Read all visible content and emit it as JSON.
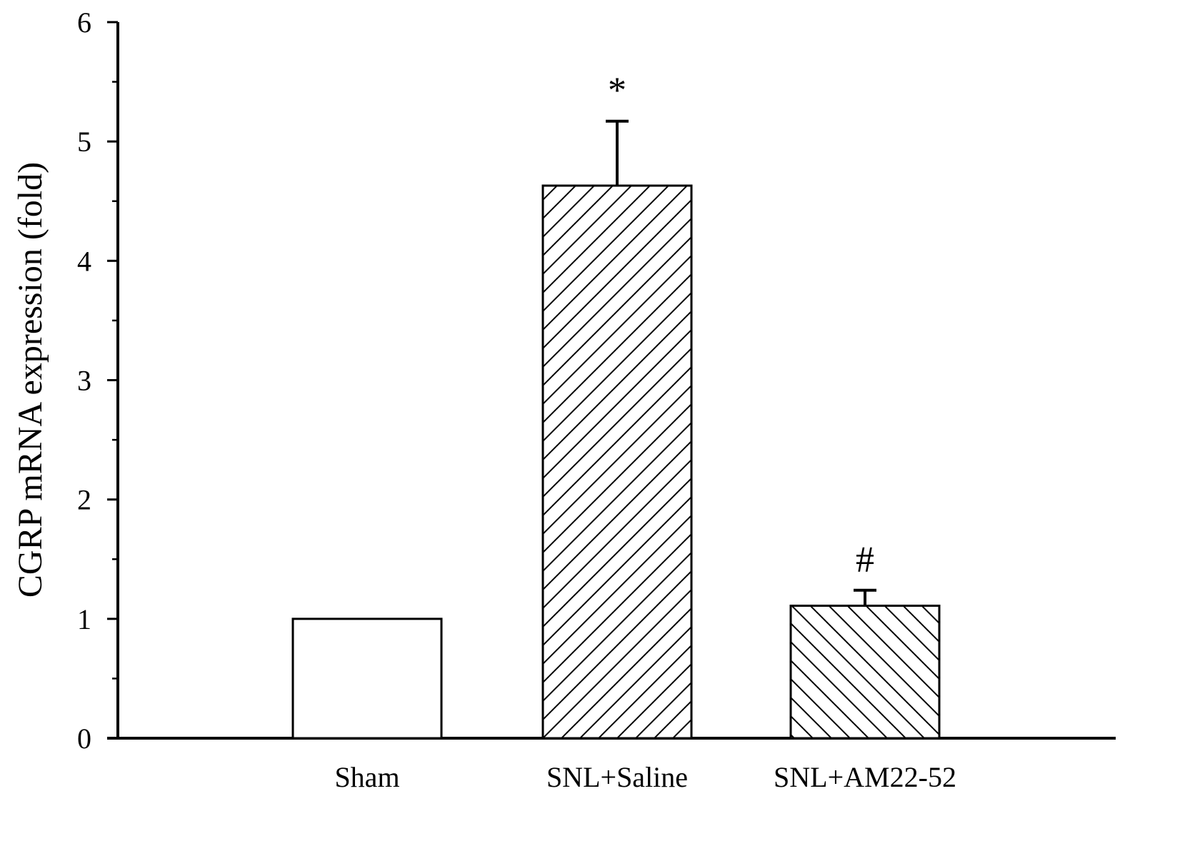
{
  "chart_data": {
    "type": "bar",
    "title": "",
    "xlabel": "",
    "ylabel": "CGRP mRNA expression (fold)",
    "categories": [
      "Sham",
      "SNL+Saline",
      "SNL+AM22-52"
    ],
    "values": [
      1.0,
      4.63,
      1.11
    ],
    "error": [
      null,
      0.54,
      0.13
    ],
    "annotations": [
      "",
      "*",
      "#"
    ],
    "fill_patterns": [
      "none",
      "hatch-forward",
      "hatch-backward"
    ],
    "ylim": [
      0,
      6
    ],
    "yticks": [
      0,
      1,
      2,
      3,
      4,
      5,
      6
    ],
    "yticks_minor": [
      0.5,
      1.5,
      2.5,
      3.5,
      4.5,
      5.5
    ],
    "grid": false,
    "legend": "none"
  },
  "colors": {
    "bar_fill": "#ffffff",
    "stroke": "#000000",
    "background": "#ffffff"
  }
}
